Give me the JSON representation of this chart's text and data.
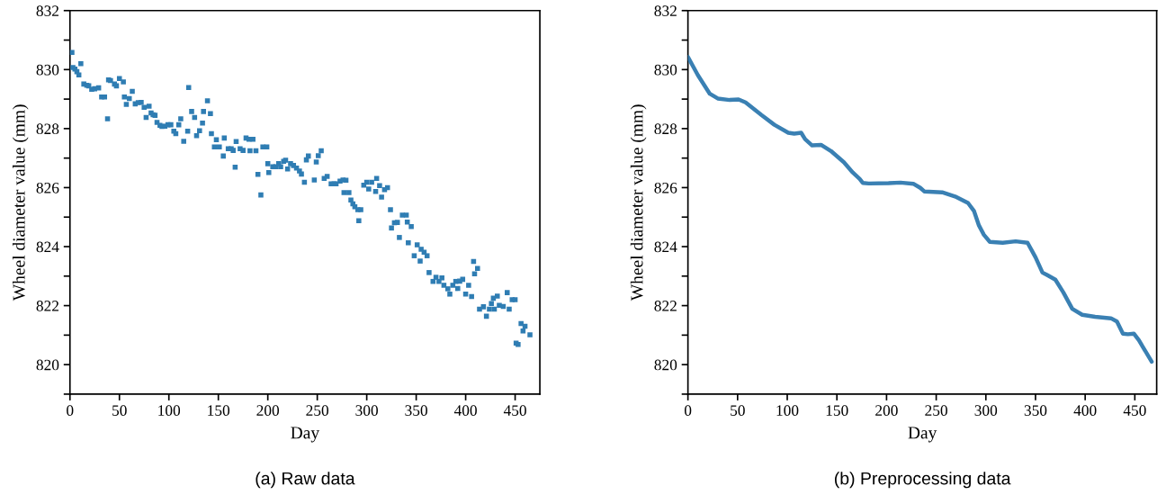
{
  "chart_data": [
    {
      "type": "scatter",
      "title": "(a) Raw data",
      "xlabel": "Day",
      "ylabel": "Wheel diameter value (mm)",
      "marker": "square",
      "grid": false,
      "xlim": [
        0,
        475
      ],
      "xticks": [
        0,
        50,
        100,
        150,
        200,
        250,
        300,
        350,
        400,
        450
      ],
      "ylim": [
        819,
        832
      ],
      "yticks": [
        {
          "value": 819,
          "label": null
        },
        820,
        {
          "value": 821,
          "label": null
        },
        822,
        {
          "value": 823,
          "label": null
        },
        824,
        {
          "value": 825,
          "label": null
        },
        826,
        {
          "value": 827,
          "label": null
        },
        828,
        {
          "value": 829,
          "label": null
        },
        830,
        {
          "value": 831,
          "label": null
        },
        832
      ],
      "series": [
        {
          "color": "#2f7db3",
          "x": [
            2,
            3,
            5,
            7,
            9,
            11,
            14,
            17,
            19,
            22,
            25,
            29,
            32,
            35,
            38,
            39,
            41,
            45,
            47,
            50,
            54,
            55,
            57,
            60,
            63,
            66,
            69,
            72,
            75,
            77,
            80,
            82,
            84,
            86,
            88,
            91,
            93,
            96,
            99,
            102,
            105,
            107,
            110,
            112,
            115,
            119,
            120,
            123,
            126,
            128,
            131,
            134,
            135,
            139,
            142,
            143,
            146,
            148,
            151,
            155,
            156,
            160,
            163,
            165,
            167,
            168,
            172,
            175,
            178,
            181,
            182,
            185,
            188,
            190,
            193,
            195,
            199,
            200,
            201,
            205,
            208,
            211,
            213,
            216,
            218,
            220,
            223,
            226,
            229,
            232,
            234,
            237,
            239,
            241,
            247,
            249,
            251,
            254,
            257,
            260,
            264,
            267,
            269,
            273,
            276,
            277,
            279,
            282,
            284,
            286,
            288,
            291,
            292,
            294,
            297,
            300,
            302,
            305,
            309,
            310,
            313,
            315,
            318,
            321,
            324,
            325,
            328,
            331,
            333,
            336,
            340,
            341,
            342,
            345,
            348,
            351,
            354,
            355,
            358,
            361,
            363,
            367,
            370,
            373,
            376,
            378,
            382,
            384,
            387,
            390,
            392,
            394,
            397,
            400,
            403,
            406,
            408,
            409,
            412,
            414,
            418,
            421,
            424,
            426,
            428,
            429,
            432,
            434,
            438,
            442,
            444,
            447,
            450,
            451,
            453,
            456,
            458,
            460,
            465
          ],
          "values": [
            830.58,
            830.07,
            830.02,
            829.93,
            829.82,
            830.2,
            829.51,
            829.47,
            829.45,
            829.33,
            829.35,
            829.38,
            829.07,
            829.07,
            828.33,
            829.65,
            829.63,
            829.51,
            829.45,
            829.7,
            829.58,
            829.07,
            828.82,
            829.02,
            829.26,
            828.84,
            828.88,
            828.89,
            828.72,
            828.38,
            828.76,
            828.53,
            828.47,
            828.45,
            828.21,
            828.11,
            828.07,
            828.08,
            828.13,
            828.13,
            827.91,
            827.83,
            828.13,
            828.33,
            827.57,
            827.91,
            829.39,
            828.58,
            828.38,
            827.76,
            827.93,
            828.19,
            828.58,
            828.94,
            828.51,
            827.83,
            827.38,
            827.62,
            827.38,
            827.07,
            827.68,
            827.32,
            827.32,
            827.26,
            826.69,
            827.56,
            827.32,
            827.26,
            827.68,
            827.64,
            827.25,
            827.64,
            827.25,
            826.45,
            825.75,
            827.38,
            827.38,
            826.81,
            826.51,
            826.71,
            826.71,
            826.81,
            826.71,
            826.89,
            826.93,
            826.63,
            826.81,
            826.75,
            826.66,
            826.56,
            826.46,
            826.18,
            826.94,
            827.07,
            826.26,
            826.87,
            827.08,
            827.25,
            826.31,
            826.38,
            826.13,
            826.13,
            826.13,
            826.22,
            826.26,
            825.83,
            826.25,
            825.83,
            825.58,
            825.45,
            825.35,
            825.25,
            824.88,
            825.25,
            826.08,
            826.18,
            825.95,
            826.18,
            825.87,
            826.31,
            826.07,
            825.68,
            825.93,
            826.0,
            825.25,
            824.63,
            824.81,
            824.82,
            824.31,
            825.07,
            825.07,
            824.83,
            824.13,
            824.68,
            823.69,
            824.06,
            823.51,
            823.91,
            823.81,
            823.69,
            823.12,
            822.82,
            822.96,
            822.82,
            822.94,
            822.69,
            822.57,
            822.39,
            822.69,
            822.82,
            822.58,
            822.83,
            822.89,
            822.39,
            822.69,
            822.31,
            823.5,
            823.08,
            823.26,
            821.88,
            821.96,
            821.64,
            821.88,
            822.07,
            822.25,
            821.88,
            822.32,
            822.01,
            821.97,
            822.44,
            821.88,
            822.2,
            822.2,
            820.73,
            820.68,
            821.39,
            821.14,
            821.3,
            821.01
          ]
        }
      ]
    },
    {
      "type": "line",
      "title": "(b) Preprocessing data",
      "xlabel": "Day",
      "ylabel": "Wheel diameter value (mm)",
      "marker": "none",
      "line_style": "solid",
      "grid": false,
      "xlim": [
        0,
        472
      ],
      "xticks": [
        0,
        50,
        100,
        150,
        200,
        250,
        300,
        350,
        400,
        450
      ],
      "ylim": [
        819,
        832
      ],
      "yticks": [
        {
          "value": 819,
          "label": null
        },
        820,
        {
          "value": 821,
          "label": null
        },
        822,
        {
          "value": 823,
          "label": null
        },
        824,
        {
          "value": 825,
          "label": null
        },
        826,
        {
          "value": 827,
          "label": null
        },
        828,
        {
          "value": 829,
          "label": null
        },
        830,
        {
          "value": 831,
          "label": null
        },
        832
      ],
      "series": [
        {
          "color": "#3a80b3",
          "x": [
            0,
            10,
            22,
            30,
            42,
            51,
            58,
            74,
            87,
            101,
            107,
            114,
            118,
            125,
            134,
            144,
            157,
            166,
            173,
            176,
            182,
            202,
            214,
            227,
            234,
            238,
            256,
            269,
            282,
            288,
            293,
            298,
            304,
            317,
            330,
            342,
            350,
            357,
            362,
            370,
            378,
            387,
            397,
            410,
            426,
            432,
            438,
            443,
            449,
            454,
            467
          ],
          "values": [
            830.43,
            829.81,
            829.18,
            829.02,
            828.97,
            828.99,
            828.89,
            828.46,
            828.13,
            827.86,
            827.83,
            827.86,
            827.64,
            827.43,
            827.45,
            827.24,
            826.86,
            826.51,
            826.29,
            826.16,
            826.14,
            826.15,
            826.17,
            826.13,
            825.99,
            825.87,
            825.84,
            825.7,
            825.48,
            825.21,
            824.72,
            824.4,
            824.16,
            824.13,
            824.18,
            824.13,
            823.64,
            823.12,
            823.03,
            822.88,
            822.45,
            821.89,
            821.69,
            821.62,
            821.57,
            821.46,
            821.05,
            821.03,
            821.05,
            820.83,
            820.1
          ]
        }
      ]
    }
  ]
}
